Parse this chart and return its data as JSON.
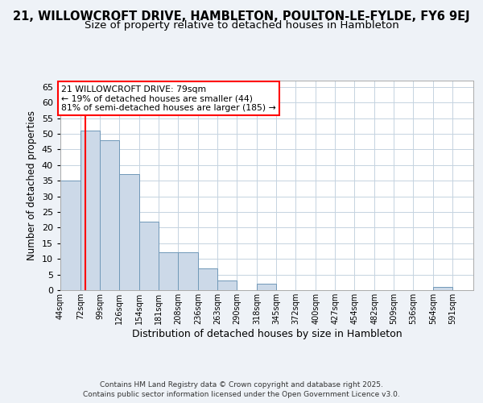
{
  "title": "21, WILLOWCROFT DRIVE, HAMBLETON, POULTON-LE-FYLDE, FY6 9EJ",
  "subtitle": "Size of property relative to detached houses in Hambleton",
  "xlabel": "Distribution of detached houses by size in Hambleton",
  "ylabel": "Number of detached properties",
  "bar_color": "#ccd9e8",
  "bar_edge_color": "#7098b8",
  "vline_x": 79,
  "vline_color": "red",
  "annotation_title": "21 WILLOWCROFT DRIVE: 79sqm",
  "annotation_line1": "← 19% of detached houses are smaller (44)",
  "annotation_line2": "81% of semi-detached houses are larger (185) →",
  "annotation_box_color": "white",
  "annotation_box_edge_color": "red",
  "categories": [
    "44sqm",
    "72sqm",
    "99sqm",
    "126sqm",
    "154sqm",
    "181sqm",
    "208sqm",
    "236sqm",
    "263sqm",
    "290sqm",
    "318sqm",
    "345sqm",
    "372sqm",
    "400sqm",
    "427sqm",
    "454sqm",
    "482sqm",
    "509sqm",
    "536sqm",
    "564sqm",
    "591sqm"
  ],
  "bin_edges": [
    44,
    72,
    99,
    126,
    154,
    181,
    208,
    236,
    263,
    290,
    318,
    345,
    372,
    400,
    427,
    454,
    482,
    509,
    536,
    564,
    591,
    620
  ],
  "values": [
    35,
    51,
    48,
    37,
    22,
    12,
    12,
    7,
    3,
    0,
    2,
    0,
    0,
    0,
    0,
    0,
    0,
    0,
    0,
    1,
    0
  ],
  "ylim": [
    0,
    67
  ],
  "yticks": [
    0,
    5,
    10,
    15,
    20,
    25,
    30,
    35,
    40,
    45,
    50,
    55,
    60,
    65
  ],
  "background_color": "#eef2f7",
  "plot_background": "white",
  "grid_color": "#c5d3e0",
  "footer1": "Contains HM Land Registry data © Crown copyright and database right 2025.",
  "footer2": "Contains public sector information licensed under the Open Government Licence v3.0.",
  "title_fontsize": 10.5,
  "subtitle_fontsize": 9.5
}
